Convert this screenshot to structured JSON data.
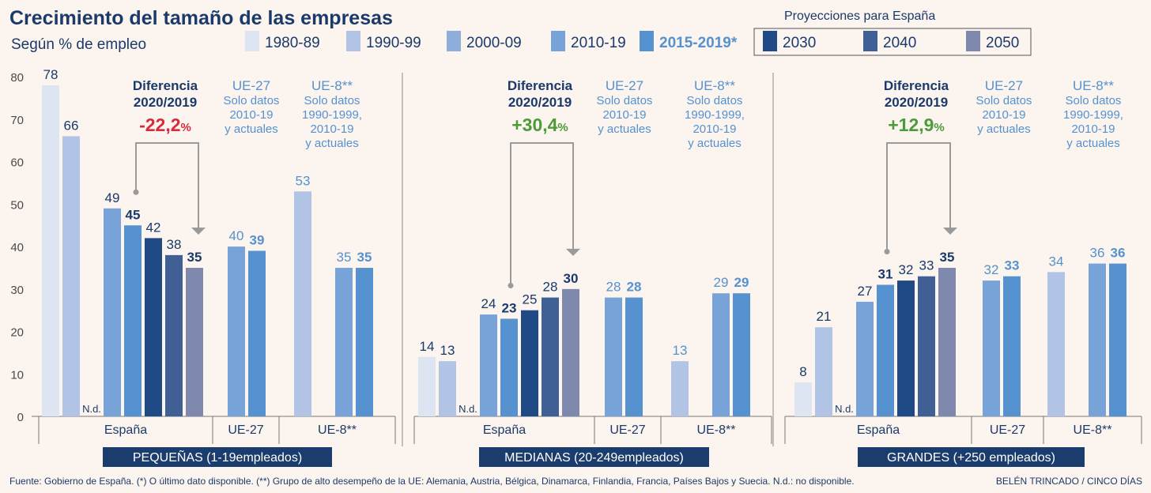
{
  "title": "Crecimiento del tamaño de las empresas",
  "subtitle": "Según % de empleo",
  "legend": {
    "proj_label": "Proyecciones para España",
    "items": [
      {
        "key": "1980-89",
        "label": "1980-89",
        "color": "#dde5f3"
      },
      {
        "key": "1990-99",
        "label": "1990-99",
        "color": "#b1c4e6"
      },
      {
        "key": "2000-09",
        "label": "2000-09",
        "color": "#8fadd9"
      },
      {
        "key": "2010-19",
        "label": "2010-19",
        "color": "#78a3d8"
      },
      {
        "key": "2015-2019*",
        "label": "2015-2019*",
        "color": "#5592cf"
      },
      {
        "key": "2030",
        "label": "2030",
        "color": "#1f4a86"
      },
      {
        "key": "2040",
        "label": "2040",
        "color": "#3f5f95"
      },
      {
        "key": "2050",
        "label": "2050",
        "color": "#7f89ad"
      }
    ]
  },
  "colors": {
    "accent_blue": "#5592cf",
    "dark_navy": "#1a3a6b",
    "banner": "#1b3d6e",
    "red": "#d62b3b",
    "green": "#4b9b3b",
    "axis_text": "#4a4a4a"
  },
  "chart_data": {
    "type": "bar",
    "ylim": [
      0,
      80
    ],
    "yticks": [
      0,
      10,
      20,
      30,
      40,
      50,
      60,
      70,
      80
    ],
    "nd_label": "N.d.",
    "panels": [
      {
        "name": "PEQUEÑAS (1-19empleados)",
        "diff_title": [
          "Diferencia",
          "2020/2019"
        ],
        "diff_value": "-22,2",
        "diff_suffix": "%",
        "diff_color": "#d62b3b",
        "ue27_note": [
          "UE-27",
          "Solo datos",
          "2010-19",
          "y actuales"
        ],
        "ue8_note": [
          "UE-8**",
          "Solo datos",
          "1990-1999,",
          "2010-19",
          "y actuales"
        ],
        "groups": [
          {
            "label": "España",
            "bars": [
              {
                "series": "1980-89",
                "value": 78,
                "label": "78"
              },
              {
                "series": "1990-99",
                "value": 66,
                "label": "66"
              },
              {
                "series": "2000-09",
                "value": null,
                "label": "N.d."
              },
              {
                "series": "2010-19",
                "value": 49,
                "label": "49"
              },
              {
                "series": "2015-2019*",
                "value": 45,
                "label": "45",
                "bold": true
              },
              {
                "series": "2030",
                "value": 42,
                "label": "42"
              },
              {
                "series": "2040",
                "value": 38,
                "label": "38"
              },
              {
                "series": "2050",
                "value": 35,
                "label": "35",
                "bold": true
              }
            ]
          },
          {
            "label": "UE-27",
            "bars": [
              {
                "series": "2010-19",
                "value": 40,
                "label": "40",
                "blue": true
              },
              {
                "series": "2015-2019*",
                "value": 39,
                "label": "39",
                "bold": true,
                "blue": true
              }
            ]
          },
          {
            "label": "UE-8**",
            "bars": [
              {
                "series": "1990-99",
                "value": 53,
                "label": "53",
                "blue": true
              },
              {
                "series": "gap",
                "value": null,
                "label": ""
              },
              {
                "series": "2010-19",
                "value": 35,
                "label": "35",
                "blue": true
              },
              {
                "series": "2015-2019*",
                "value": 35,
                "label": "35",
                "bold": true,
                "blue": true
              }
            ]
          }
        ]
      },
      {
        "name": "MEDIANAS (20-249empleados)",
        "diff_title": [
          "Diferencia",
          "2020/2019"
        ],
        "diff_value": "+30,4",
        "diff_suffix": "%",
        "diff_color": "#4b9b3b",
        "ue27_note": [
          "UE-27",
          "Solo datos",
          "2010-19",
          "y actuales"
        ],
        "ue8_note": [
          "UE-8**",
          "Solo datos",
          "1990-1999,",
          "2010-19",
          "y actuales"
        ],
        "groups": [
          {
            "label": "España",
            "bars": [
              {
                "series": "1980-89",
                "value": 14,
                "label": "14"
              },
              {
                "series": "1990-99",
                "value": 13,
                "label": "13"
              },
              {
                "series": "2000-09",
                "value": null,
                "label": "N.d."
              },
              {
                "series": "2010-19",
                "value": 24,
                "label": "24"
              },
              {
                "series": "2015-2019*",
                "value": 23,
                "label": "23",
                "bold": true
              },
              {
                "series": "2030",
                "value": 25,
                "label": "25"
              },
              {
                "series": "2040",
                "value": 28,
                "label": "28"
              },
              {
                "series": "2050",
                "value": 30,
                "label": "30",
                "bold": true
              }
            ]
          },
          {
            "label": "UE-27",
            "bars": [
              {
                "series": "2010-19",
                "value": 28,
                "label": "28",
                "blue": true
              },
              {
                "series": "2015-2019*",
                "value": 28,
                "label": "28",
                "bold": true,
                "blue": true
              }
            ]
          },
          {
            "label": "UE-8**",
            "bars": [
              {
                "series": "1990-99",
                "value": 13,
                "label": "13",
                "blue": true
              },
              {
                "series": "gap",
                "value": null,
                "label": ""
              },
              {
                "series": "2010-19",
                "value": 29,
                "label": "29",
                "blue": true
              },
              {
                "series": "2015-2019*",
                "value": 29,
                "label": "29",
                "bold": true,
                "blue": true
              }
            ]
          }
        ]
      },
      {
        "name": "GRANDES (+250 empleados)",
        "diff_title": [
          "Diferencia",
          "2020/2019"
        ],
        "diff_value": "+12,9",
        "diff_suffix": "%",
        "diff_color": "#4b9b3b",
        "ue27_note": [
          "UE-27",
          "Solo datos",
          "2010-19",
          "y actuales"
        ],
        "ue8_note": [
          "UE-8**",
          "Solo datos",
          "1990-1999,",
          "2010-19",
          "y actuales"
        ],
        "groups": [
          {
            "label": "España",
            "bars": [
              {
                "series": "1980-89",
                "value": 8,
                "label": "8"
              },
              {
                "series": "1990-99",
                "value": 21,
                "label": "21"
              },
              {
                "series": "2000-09",
                "value": null,
                "label": "N.d."
              },
              {
                "series": "2010-19",
                "value": 27,
                "label": "27"
              },
              {
                "series": "2015-2019*",
                "value": 31,
                "label": "31",
                "bold": true
              },
              {
                "series": "2030",
                "value": 32,
                "label": "32"
              },
              {
                "series": "2040",
                "value": 33,
                "label": "33"
              },
              {
                "series": "2050",
                "value": 35,
                "label": "35",
                "bold": true
              }
            ]
          },
          {
            "label": "UE-27",
            "bars": [
              {
                "series": "2010-19",
                "value": 32,
                "label": "32",
                "blue": true
              },
              {
                "series": "2015-2019*",
                "value": 33,
                "label": "33",
                "bold": true,
                "blue": true
              }
            ]
          },
          {
            "label": "UE-8**",
            "bars": [
              {
                "series": "1990-99",
                "value": 34,
                "label": "34",
                "blue": true
              },
              {
                "series": "gap",
                "value": null,
                "label": ""
              },
              {
                "series": "2010-19",
                "value": 36,
                "label": "36",
                "blue": true
              },
              {
                "series": "2015-2019*",
                "value": 36,
                "label": "36",
                "bold": true,
                "blue": true
              }
            ]
          }
        ]
      }
    ]
  },
  "footer": {
    "source": "Fuente: Gobierno de España. (*) O último dato disponible. (**) Grupo de alto desempeño de la UE: Alemania, Austria, Bélgica, Dinamarca, Finlandia, Francia, Países Bajos y Suecia. N.d.: no disponible.",
    "credit": "BELÉN TRINCADO / CINCO DÍAS"
  }
}
